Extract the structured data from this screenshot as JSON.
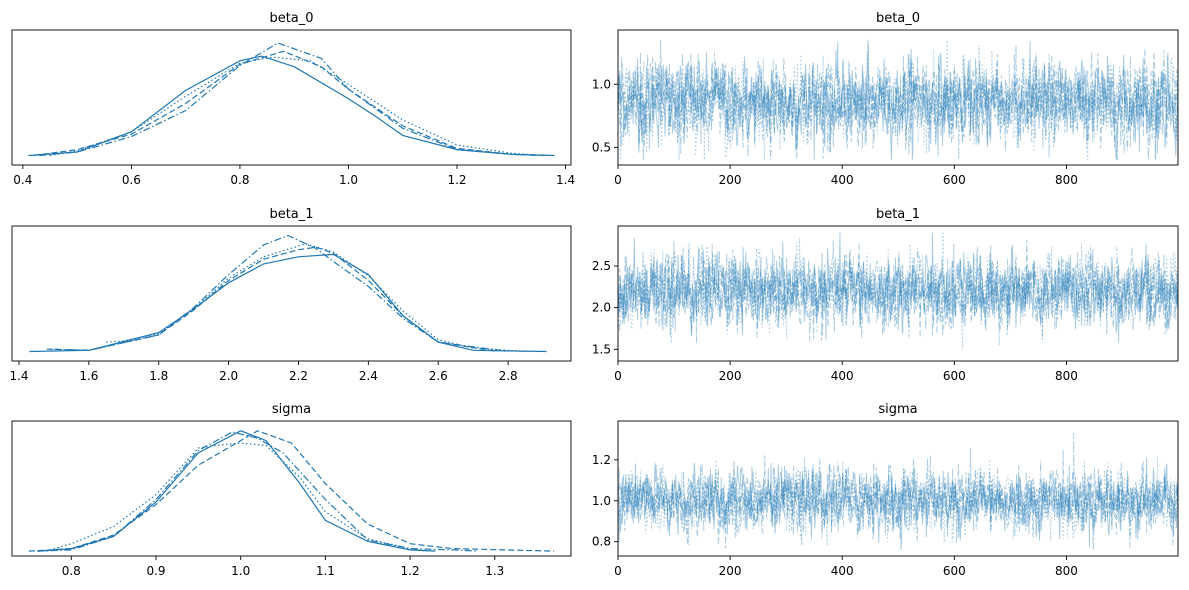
{
  "colors": {
    "kde": "#1f77b4",
    "trace": "#1f77b4",
    "trace_alpha": 0.4
  },
  "chart_data": [
    {
      "type": "line",
      "role": "kde",
      "title": "beta_0",
      "xlim": [
        0.38,
        1.41
      ],
      "ylim": [
        -0.08,
        1.06
      ],
      "xticks": [
        0.4,
        0.6,
        0.8,
        1.0,
        1.2,
        1.4
      ],
      "xticklabels": [
        "0.4",
        "0.6",
        "0.8",
        "1.0",
        "1.2",
        "1.4"
      ],
      "yticks": [],
      "series": [
        {
          "linestyle": "solid",
          "x": [
            0.41,
            0.5,
            0.6,
            0.7,
            0.8,
            0.84,
            0.9,
            1.0,
            1.05,
            1.1,
            1.2,
            1.3,
            1.38
          ],
          "y": [
            0.0,
            0.03,
            0.2,
            0.55,
            0.8,
            0.84,
            0.75,
            0.48,
            0.33,
            0.17,
            0.05,
            0.01,
            0.0
          ]
        },
        {
          "linestyle": "dashed",
          "x": [
            0.42,
            0.5,
            0.6,
            0.7,
            0.8,
            0.88,
            0.95,
            1.0,
            1.1,
            1.2,
            1.3,
            1.37
          ],
          "y": [
            0.0,
            0.05,
            0.18,
            0.44,
            0.77,
            0.88,
            0.75,
            0.56,
            0.25,
            0.06,
            0.01,
            0.0
          ]
        },
        {
          "linestyle": "dotted",
          "x": [
            0.45,
            0.5,
            0.6,
            0.7,
            0.8,
            0.86,
            0.93,
            1.0,
            1.1,
            1.2,
            1.3,
            1.36
          ],
          "y": [
            0.0,
            0.04,
            0.2,
            0.5,
            0.78,
            0.83,
            0.8,
            0.6,
            0.3,
            0.09,
            0.02,
            0.0
          ]
        },
        {
          "linestyle": "dashdot",
          "x": [
            0.43,
            0.5,
            0.6,
            0.7,
            0.8,
            0.87,
            0.95,
            1.0,
            1.1,
            1.2,
            1.3,
            1.35
          ],
          "y": [
            0.0,
            0.03,
            0.16,
            0.38,
            0.76,
            0.95,
            0.82,
            0.56,
            0.23,
            0.05,
            0.01,
            0.0
          ]
        }
      ]
    },
    {
      "type": "line",
      "role": "trace",
      "title": "beta_0",
      "xlim": [
        0,
        999
      ],
      "ylim": [
        0.36,
        1.43
      ],
      "xticks": [
        0,
        200,
        400,
        600,
        800
      ],
      "xticklabels": [
        "0",
        "200",
        "400",
        "600",
        "800"
      ],
      "yticks": [
        0.5,
        1.0
      ],
      "yticklabels": [
        "0.5",
        "1.0"
      ],
      "n_draws": 1000,
      "n_chains": 4,
      "center": 0.86,
      "sd": 0.15,
      "y_min": 0.4,
      "y_max": 1.38
    },
    {
      "type": "line",
      "role": "kde",
      "title": "beta_1",
      "xlim": [
        1.38,
        2.98
      ],
      "ylim": [
        -0.08,
        1.06
      ],
      "xticks": [
        1.4,
        1.6,
        1.8,
        2.0,
        2.2,
        2.4,
        2.6,
        2.8
      ],
      "xticklabels": [
        "1.4",
        "1.6",
        "1.8",
        "2.0",
        "2.2",
        "2.4",
        "2.6",
        "2.8"
      ],
      "yticks": [],
      "series": [
        {
          "linestyle": "solid",
          "x": [
            1.43,
            1.6,
            1.8,
            1.9,
            2.0,
            2.1,
            2.2,
            2.3,
            2.4,
            2.5,
            2.6,
            2.7,
            2.91
          ],
          "y": [
            0.0,
            0.01,
            0.16,
            0.36,
            0.58,
            0.74,
            0.8,
            0.82,
            0.65,
            0.3,
            0.08,
            0.01,
            0.0
          ]
        },
        {
          "linestyle": "dashed",
          "x": [
            1.48,
            1.6,
            1.8,
            1.9,
            2.0,
            2.1,
            2.2,
            2.25,
            2.3,
            2.4,
            2.5,
            2.6,
            2.77
          ],
          "y": [
            0.02,
            0.01,
            0.14,
            0.35,
            0.6,
            0.78,
            0.86,
            0.88,
            0.83,
            0.6,
            0.3,
            0.08,
            0.0
          ]
        },
        {
          "linestyle": "dotted",
          "x": [
            1.65,
            1.7,
            1.8,
            1.9,
            2.0,
            2.1,
            2.22,
            2.3,
            2.4,
            2.5,
            2.6,
            2.7,
            2.85
          ],
          "y": [
            0.08,
            0.09,
            0.15,
            0.36,
            0.62,
            0.8,
            0.91,
            0.84,
            0.64,
            0.34,
            0.1,
            0.03,
            0.0
          ]
        },
        {
          "linestyle": "dashdot",
          "x": [
            1.5,
            1.6,
            1.8,
            1.9,
            2.0,
            2.1,
            2.17,
            2.25,
            2.3,
            2.4,
            2.5,
            2.6,
            2.8
          ],
          "y": [
            0.02,
            0.01,
            0.14,
            0.37,
            0.65,
            0.9,
            0.98,
            0.87,
            0.76,
            0.55,
            0.28,
            0.08,
            0.0
          ]
        }
      ]
    },
    {
      "type": "line",
      "role": "trace",
      "title": "beta_1",
      "xlim": [
        0,
        999
      ],
      "ylim": [
        1.36,
        2.98
      ],
      "xticks": [
        0,
        200,
        400,
        600,
        800
      ],
      "xticklabels": [
        "0",
        "200",
        "400",
        "600",
        "800"
      ],
      "yticks": [
        1.5,
        2.0,
        2.5
      ],
      "yticklabels": [
        "1.5",
        "2.0",
        "2.5"
      ],
      "n_draws": 1000,
      "n_chains": 4,
      "center": 2.2,
      "sd": 0.2,
      "y_min": 1.43,
      "y_max": 2.9
    },
    {
      "type": "line",
      "role": "kde",
      "title": "sigma",
      "xlim": [
        0.73,
        1.39
      ],
      "ylim": [
        -0.04,
        1.06
      ],
      "xticks": [
        0.8,
        0.9,
        1.0,
        1.1,
        1.2,
        1.3
      ],
      "xticklabels": [
        "0.8",
        "0.9",
        "1.0",
        "1.1",
        "1.2",
        "1.3"
      ],
      "yticks": [],
      "series": [
        {
          "linestyle": "solid",
          "x": [
            0.76,
            0.8,
            0.85,
            0.9,
            0.95,
            1.0,
            1.03,
            1.07,
            1.1,
            1.15,
            1.2,
            1.23
          ],
          "y": [
            0.0,
            0.02,
            0.12,
            0.4,
            0.8,
            0.98,
            0.9,
            0.55,
            0.25,
            0.08,
            0.01,
            0.0
          ]
        },
        {
          "linestyle": "dashed",
          "x": [
            0.75,
            0.8,
            0.85,
            0.9,
            0.95,
            1.0,
            1.02,
            1.06,
            1.1,
            1.15,
            1.2,
            1.25,
            1.37
          ],
          "y": [
            0.0,
            0.02,
            0.13,
            0.38,
            0.7,
            0.9,
            0.98,
            0.88,
            0.55,
            0.22,
            0.06,
            0.02,
            0.0
          ]
        },
        {
          "linestyle": "dotted",
          "x": [
            0.77,
            0.8,
            0.85,
            0.9,
            0.95,
            0.97,
            1.0,
            1.03,
            1.07,
            1.1,
            1.15,
            1.2,
            1.22
          ],
          "y": [
            0.0,
            0.06,
            0.2,
            0.46,
            0.84,
            0.86,
            0.88,
            0.86,
            0.6,
            0.32,
            0.1,
            0.02,
            0.0
          ]
        },
        {
          "linestyle": "dashdot",
          "x": [
            0.76,
            0.8,
            0.85,
            0.9,
            0.95,
            0.99,
            1.02,
            1.05,
            1.1,
            1.15,
            1.2,
            1.25,
            1.28
          ],
          "y": [
            0.0,
            0.01,
            0.12,
            0.42,
            0.82,
            0.97,
            0.92,
            0.8,
            0.42,
            0.09,
            0.02,
            0.01,
            0.0
          ]
        }
      ]
    },
    {
      "type": "line",
      "role": "trace",
      "title": "sigma",
      "xlim": [
        0,
        999
      ],
      "ylim": [
        0.73,
        1.39
      ],
      "xticks": [
        0,
        200,
        400,
        600,
        800
      ],
      "xticklabels": [
        "0",
        "200",
        "400",
        "600",
        "800"
      ],
      "yticks": [
        0.8,
        1.0,
        1.2
      ],
      "yticklabels": [
        "0.8",
        "1.0",
        "1.2"
      ],
      "n_draws": 1000,
      "n_chains": 4,
      "center": 1.0,
      "sd": 0.07,
      "y_min": 0.76,
      "y_max": 1.36
    }
  ]
}
